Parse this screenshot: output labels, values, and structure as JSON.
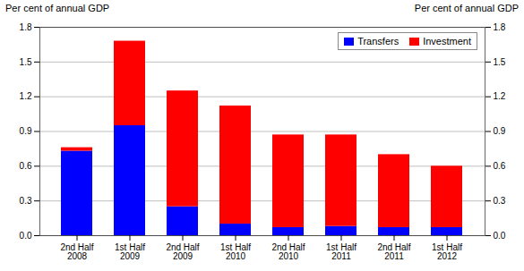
{
  "chart_data": {
    "type": "bar",
    "stacked": true,
    "categories": [
      "2nd Half\n2008",
      "1st Half\n2009",
      "2nd Half\n2009",
      "1st Half\n2010",
      "2nd Half\n2010",
      "1st Half\n2011",
      "2nd Half\n2011",
      "1st Half\n2012"
    ],
    "series": [
      {
        "name": "Transfers",
        "color": "#0000FF",
        "values": [
          0.73,
          0.95,
          0.25,
          0.1,
          0.07,
          0.08,
          0.07,
          0.07
        ]
      },
      {
        "name": "Investment",
        "color": "#FF0000",
        "values": [
          0.03,
          0.73,
          1.0,
          1.02,
          0.8,
          0.79,
          0.63,
          0.53
        ]
      }
    ],
    "ylabel": "Per cent of annual GDP",
    "y2label": "Per cent of annual GDP",
    "ylim": [
      0.0,
      1.8
    ],
    "yticks": [
      {
        "value": 0,
        "label": "0.0"
      },
      0.3,
      0.6,
      0.9,
      1.2,
      1.5,
      1.8
    ],
    "y2lim": [
      0.0,
      1.8
    ],
    "y2ticks": [
      {
        "value": 0,
        "label": "0.0"
      },
      0.3,
      0.6,
      0.9,
      1.2,
      1.5,
      1.8
    ],
    "grid": true,
    "legend": "upper right"
  }
}
